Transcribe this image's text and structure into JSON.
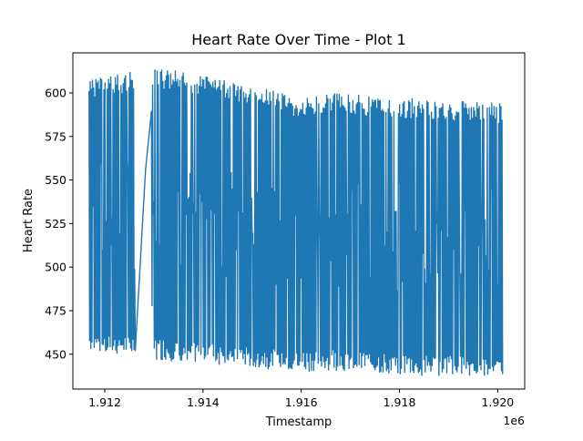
{
  "chart_data": {
    "type": "line",
    "title": "Heart Rate Over Time - Plot 1",
    "xlabel": "Timestamp",
    "ylabel": "Heart Rate",
    "x_offset_label": "1e6",
    "xlim": [
      1.91135,
      1.92055
    ],
    "ylim": [
      430,
      623
    ],
    "x_ticks": [
      1.912,
      1.914,
      1.916,
      1.918,
      1.92
    ],
    "x_tick_labels": [
      "1.912",
      "1.914",
      "1.916",
      "1.918",
      "1.920"
    ],
    "y_ticks": [
      450,
      475,
      500,
      525,
      550,
      575,
      600
    ],
    "y_tick_labels": [
      "450",
      "475",
      "500",
      "525",
      "550",
      "575",
      "600"
    ],
    "grid": false,
    "series": [
      {
        "color": "#1f77b4",
        "x": [
          1.91168,
          1.9125,
          1.91262,
          1.91283,
          1.913,
          1.9147,
          1.916,
          1.9165,
          1.918,
          1.9201
        ],
        "y_max": [
          608,
          612,
          613,
          556,
          615,
          606,
          597,
          600,
          597,
          594
        ],
        "y_min": [
          450,
          449,
          449,
          556,
          447,
          443,
          440,
          441,
          438,
          437
        ],
        "gap": {
          "from_x": 1.91262,
          "to_x": 1.91295,
          "from_y": 452,
          "to_y": 556
        }
      }
    ]
  }
}
